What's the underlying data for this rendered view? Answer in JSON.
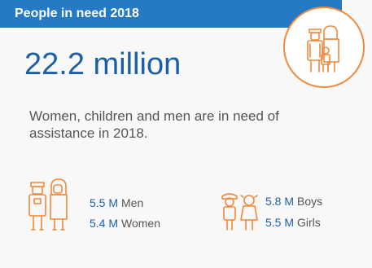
{
  "header": {
    "title": "People in need 2018"
  },
  "headline": {
    "value": "22.2 million"
  },
  "description": "Women, children and men are in need of assistance in 2018.",
  "adults": {
    "men": {
      "value": "5.5 M",
      "label": "Men"
    },
    "women": {
      "value": "5.4 M",
      "label": "Women"
    }
  },
  "children": {
    "boys": {
      "value": "5.8 M",
      "label": "Boys"
    },
    "girls": {
      "value": "5.5 M",
      "label": "Girls"
    }
  },
  "colors": {
    "header": "#2679c5",
    "accent_text": "#1d5fa6",
    "icon": "#f0893b",
    "body_text": "#555555"
  }
}
